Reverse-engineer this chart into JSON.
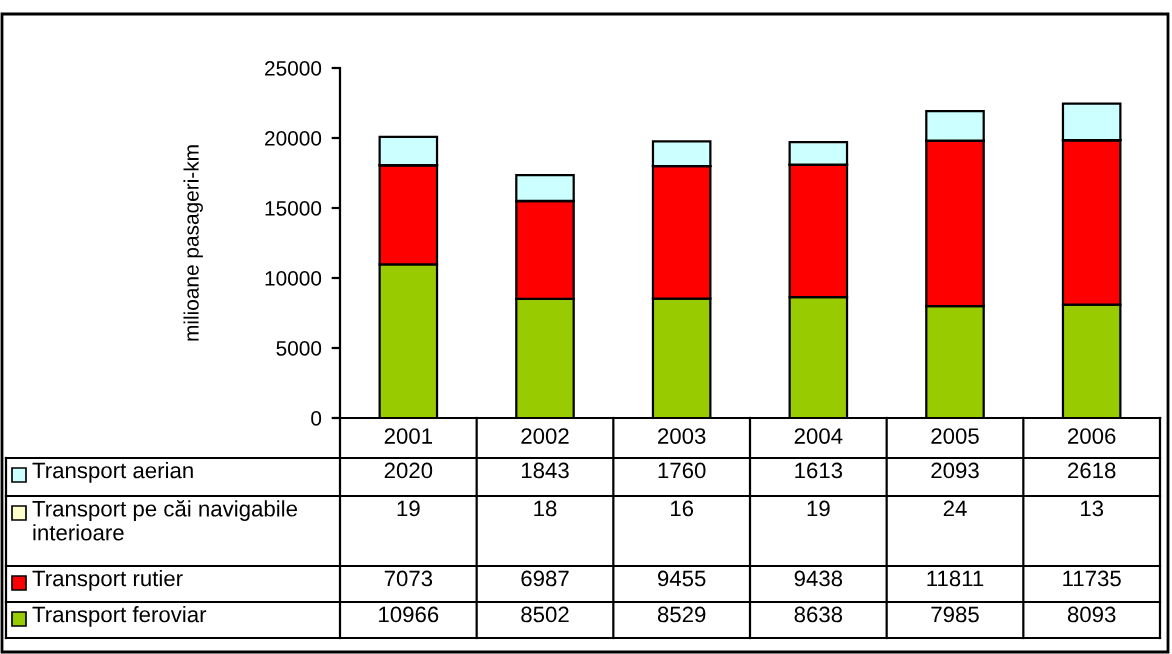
{
  "chart_data": {
    "type": "bar",
    "stacked": true,
    "ylabel": "milioane pasageri-km",
    "categories": [
      "2001",
      "2002",
      "2003",
      "2004",
      "2005",
      "2006"
    ],
    "series": [
      {
        "name": "Transport feroviar",
        "color": "#99cc00",
        "values": [
          10966,
          8502,
          8529,
          8638,
          7985,
          8093
        ]
      },
      {
        "name": "Transport rutier",
        "color": "#ff0000",
        "values": [
          7073,
          6987,
          9455,
          9438,
          11811,
          11735
        ]
      },
      {
        "name": "Transport pe căi navigabile interioare",
        "color": "#ffffcc",
        "values": [
          19,
          18,
          16,
          19,
          24,
          13
        ]
      },
      {
        "name": "Transport aerian",
        "color": "#ccffff",
        "values": [
          2020,
          1843,
          1760,
          1613,
          2093,
          2618
        ]
      }
    ],
    "ylim": [
      0,
      25000
    ],
    "yticks": [
      0,
      5000,
      10000,
      15000,
      20000,
      25000
    ],
    "grid": false,
    "legend": "bottom left",
    "data_labels": true
  }
}
